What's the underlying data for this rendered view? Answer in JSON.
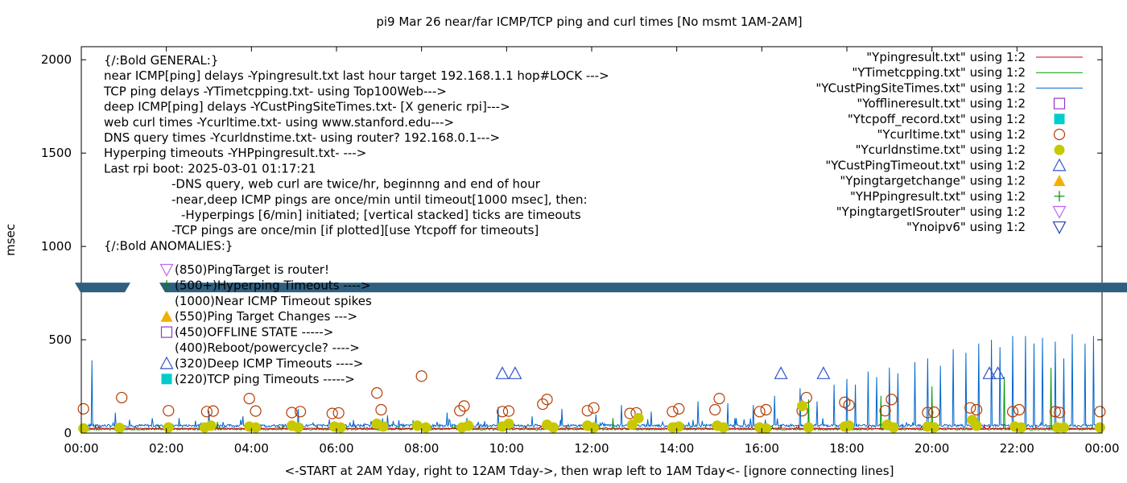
{
  "chart_data": {
    "type": "line",
    "title": "pi9 Mar 26  near/far ICMP/TCP ping and curl times [No msmt 1AM-2AM]",
    "xlabel": "<-START at 2AM Yday, right to 12AM Tday->, then wrap left to 1AM Tday<- [ignore connecting lines]",
    "ylabel": "msec",
    "xlim": [
      0,
      24
    ],
    "ylim": [
      0,
      2070
    ],
    "x_ticks": [
      "00:00",
      "02:00",
      "04:00",
      "06:00",
      "08:00",
      "10:00",
      "12:00",
      "14:00",
      "16:00",
      "18:00",
      "20:00",
      "22:00",
      "00:00"
    ],
    "y_ticks": [
      "0",
      "500",
      "1000",
      "1500",
      "2000"
    ],
    "legend_placement": "top-right",
    "legend": [
      {
        "label": "\"Ypingresult.txt\" using 1:2",
        "style": "line",
        "color": "#cc0000"
      },
      {
        "label": "\"YTimetcpping.txt\" using 1:2",
        "style": "line",
        "color": "#009900"
      },
      {
        "label": "\"YCustPingSiteTimes.txt\" using 1:2",
        "style": "line",
        "color": "#0066cc"
      },
      {
        "label": "\"Yofflineresult.txt\" using 1:2",
        "style": "square-open",
        "color": "#9933cc"
      },
      {
        "label": "\"Ytcpoff_record.txt\" using 1:2",
        "style": "square-filled",
        "color": "#00cccc"
      },
      {
        "label": "\"Ycurltime.txt\" using 1:2",
        "style": "circle-open",
        "color": "#b33c00"
      },
      {
        "label": "\"Ycurldnstime.txt\" using 1:2",
        "style": "circle-filled",
        "color": "#c8c800"
      },
      {
        "label": "\"YCustPingTimeout.txt\" using 1:2",
        "style": "triangle-open",
        "color": "#3355cc"
      },
      {
        "label": "\"Ypingtargetchange\" using 1:2",
        "style": "triangle-filled",
        "color": "#f0b000"
      },
      {
        "label": "\"YHPpingresult.txt\" using 1:2",
        "style": "plus",
        "color": "#008800"
      },
      {
        "label": "\"YpingtargetISrouter\" using 1:2",
        "style": "invtriangle-open",
        "color": "#bb66ee"
      },
      {
        "label": "\"Ynoipv6\" using 1:2",
        "style": "invtriangle-open",
        "color": "#2244aa"
      }
    ],
    "annotations": [
      "{/:Bold GENERAL:}",
      "near ICMP[ping] delays -Ypingresult.txt last hour target 192.168.1.1 hop#LOCK --->",
      "TCP ping delays -YTimetcpping.txt- using Top100Web--->",
      "deep ICMP[ping] delays -YCustPingSiteTimes.txt- [X generic rpi]--->",
      "web curl times -Ycurltime.txt- using www.stanford.edu--->",
      "DNS query times -Ycurldnstime.txt- using router? 192.168.0.1--->",
      "Hyperping timeouts -YHPpingresult.txt- --->",
      "Last rpi boot: 2025-03-01 01:17:21",
      "-DNS query, web curl are twice/hr, beginnng and end of hour",
      "-near,deep ICMP pings are once/min until timeout[1000 msec], then:",
      "-Hyperpings [6/min] initiated; [vertical stacked] ticks are timeouts",
      "-TCP pings are once/min [if plotted][use Ytcpoff for timeouts]",
      "{/:Bold ANOMALIES:}"
    ],
    "anomaly_legend": [
      {
        "label": "(850)PingTarget is router!",
        "marker": "invtriangle-open",
        "color": "#bb66ee"
      },
      {
        "label": "(500+)Hyperping Timeouts ---->",
        "marker": "plus",
        "color": "#008800"
      },
      {
        "label": "(1000)Near ICMP Timeout spikes",
        "marker": "none",
        "color": "#000000"
      },
      {
        "label": "(550)Ping Target Changes --->",
        "marker": "triangle-filled",
        "color": "#f0b000"
      },
      {
        "label": "(450)OFFLINE STATE ----->",
        "marker": "square-open",
        "color": "#9933cc"
      },
      {
        "label": "(400)Reboot/powercycle? ---->",
        "marker": "none",
        "color": "#000000"
      },
      {
        "label": "(320)Deep ICMP Timeouts ---->",
        "marker": "triangle-open",
        "color": "#3355cc"
      },
      {
        "label": "(220)TCP ping Timeouts ----->",
        "marker": "square-filled",
        "color": "#00cccc"
      }
    ],
    "band_color": "#2e5f80",
    "band_value": 780,
    "series": [
      {
        "name": "\"YCustPingSiteTimes.txt\" using 1:2",
        "color": "#0066cc",
        "spikes": [
          [
            0.25,
            390
          ],
          [
            0.8,
            110
          ],
          [
            2.3,
            80
          ],
          [
            3.0,
            120
          ],
          [
            3.8,
            90
          ],
          [
            5.1,
            130
          ],
          [
            6.4,
            70
          ],
          [
            7.2,
            95
          ],
          [
            8.6,
            110
          ],
          [
            9.8,
            140
          ],
          [
            10.6,
            90
          ],
          [
            11.3,
            130
          ],
          [
            12.1,
            100
          ],
          [
            12.7,
            150
          ],
          [
            13.4,
            115
          ],
          [
            14.5,
            170
          ],
          [
            15.2,
            160
          ],
          [
            15.8,
            150
          ],
          [
            16.3,
            200
          ],
          [
            16.9,
            240
          ],
          [
            17.3,
            170
          ],
          [
            17.7,
            260
          ],
          [
            18.0,
            290
          ],
          [
            18.2,
            260
          ],
          [
            18.5,
            330
          ],
          [
            18.7,
            300
          ],
          [
            19.0,
            350
          ],
          [
            19.2,
            320
          ],
          [
            19.6,
            380
          ],
          [
            19.9,
            400
          ],
          [
            20.2,
            360
          ],
          [
            20.5,
            450
          ],
          [
            20.8,
            430
          ],
          [
            21.1,
            480
          ],
          [
            21.4,
            500
          ],
          [
            21.6,
            460
          ],
          [
            21.9,
            520
          ],
          [
            22.2,
            520
          ],
          [
            22.4,
            480
          ],
          [
            22.6,
            510
          ],
          [
            22.9,
            490
          ],
          [
            23.1,
            400
          ],
          [
            23.3,
            530
          ],
          [
            23.6,
            480
          ],
          [
            23.8,
            520
          ]
        ]
      },
      {
        "name": "\"YTimetcpping.txt\" using 1:2",
        "color": "#009900",
        "spikes": [
          [
            3.2,
            60
          ],
          [
            7.8,
            70
          ],
          [
            12.5,
            80
          ],
          [
            17.1,
            180
          ],
          [
            18.8,
            200
          ],
          [
            20.0,
            250
          ],
          [
            21.7,
            300
          ],
          [
            22.8,
            350
          ]
        ]
      }
    ],
    "curl_times": [
      [
        0.05,
        130
      ],
      [
        0.95,
        190
      ],
      [
        2.05,
        120
      ],
      [
        2.95,
        115
      ],
      [
        3.1,
        118
      ],
      [
        3.95,
        185
      ],
      [
        4.1,
        118
      ],
      [
        4.95,
        110
      ],
      [
        5.15,
        115
      ],
      [
        5.9,
        105
      ],
      [
        6.05,
        108
      ],
      [
        6.95,
        215
      ],
      [
        7.05,
        125
      ],
      [
        8.0,
        305
      ],
      [
        8.9,
        120
      ],
      [
        9.0,
        145
      ],
      [
        9.9,
        115
      ],
      [
        10.05,
        118
      ],
      [
        10.85,
        155
      ],
      [
        10.95,
        180
      ],
      [
        11.9,
        120
      ],
      [
        12.05,
        135
      ],
      [
        12.9,
        105
      ],
      [
        13.05,
        108
      ],
      [
        13.9,
        115
      ],
      [
        14.05,
        130
      ],
      [
        14.9,
        125
      ],
      [
        15.0,
        185
      ],
      [
        15.95,
        115
      ],
      [
        16.1,
        125
      ],
      [
        16.95,
        120
      ],
      [
        17.05,
        190
      ],
      [
        17.95,
        165
      ],
      [
        18.05,
        150
      ],
      [
        18.9,
        120
      ],
      [
        19.05,
        180
      ],
      [
        19.9,
        110
      ],
      [
        20.05,
        112
      ],
      [
        20.9,
        135
      ],
      [
        21.05,
        125
      ],
      [
        21.9,
        115
      ],
      [
        22.05,
        125
      ],
      [
        22.9,
        115
      ],
      [
        23.0,
        110
      ],
      [
        23.95,
        115
      ]
    ],
    "dns_times": [
      [
        0.05,
        25
      ],
      [
        0.9,
        28
      ],
      [
        2.05,
        30
      ],
      [
        2.9,
        30
      ],
      [
        3.05,
        40
      ],
      [
        3.95,
        35
      ],
      [
        4.1,
        30
      ],
      [
        4.95,
        40
      ],
      [
        5.1,
        30
      ],
      [
        5.95,
        35
      ],
      [
        6.1,
        30
      ],
      [
        6.95,
        50
      ],
      [
        7.1,
        35
      ],
      [
        7.9,
        40
      ],
      [
        8.1,
        30
      ],
      [
        8.95,
        30
      ],
      [
        9.1,
        40
      ],
      [
        9.9,
        35
      ],
      [
        10.05,
        50
      ],
      [
        10.95,
        45
      ],
      [
        11.1,
        30
      ],
      [
        11.9,
        40
      ],
      [
        12.05,
        30
      ],
      [
        12.95,
        45
      ],
      [
        13.1,
        80
      ],
      [
        13.9,
        30
      ],
      [
        14.05,
        35
      ],
      [
        14.95,
        40
      ],
      [
        15.1,
        30
      ],
      [
        15.95,
        30
      ],
      [
        16.1,
        25
      ],
      [
        16.95,
        145
      ],
      [
        17.1,
        30
      ],
      [
        17.95,
        35
      ],
      [
        18.05,
        40
      ],
      [
        18.95,
        45
      ],
      [
        19.1,
        30
      ],
      [
        19.9,
        35
      ],
      [
        20.05,
        30
      ],
      [
        20.95,
        70
      ],
      [
        21.05,
        40
      ],
      [
        21.95,
        35
      ],
      [
        22.1,
        30
      ],
      [
        22.95,
        30
      ],
      [
        23.1,
        30
      ],
      [
        23.95,
        30
      ]
    ],
    "deep_icmp_timeouts": [
      [
        9.9,
        320
      ],
      [
        10.2,
        320
      ],
      [
        16.45,
        320
      ],
      [
        17.45,
        320
      ],
      [
        21.35,
        320
      ],
      [
        21.55,
        320
      ]
    ],
    "baselines": {
      "near_icmp": 25,
      "tcp_ping": 20,
      "deep_icmp": 40
    }
  }
}
